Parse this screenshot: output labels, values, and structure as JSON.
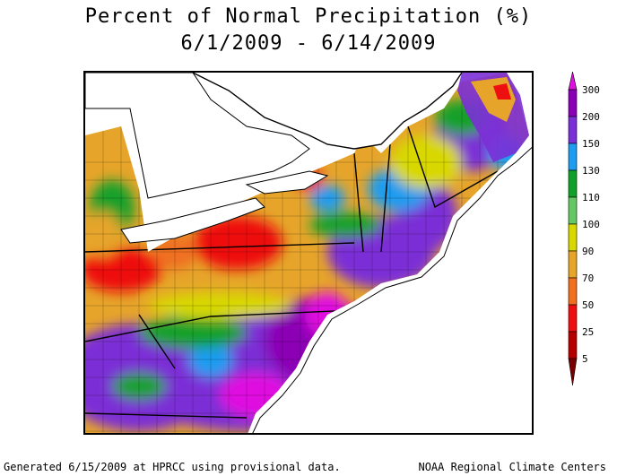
{
  "title": "Percent of Normal Precipitation (%)",
  "subtitle": "6/1/2009 - 6/14/2009",
  "footer": {
    "left": "Generated 6/15/2009 at HPRCC using provisional data.",
    "right": "NOAA Regional Climate Centers"
  },
  "legend": {
    "levels": [
      {
        "label": "300",
        "color": "#8b00b5"
      },
      {
        "label": "200",
        "color": "#7b2fd6"
      },
      {
        "label": "150",
        "color": "#1e9cf0"
      },
      {
        "label": "130",
        "color": "#12a02a"
      },
      {
        "label": "110",
        "color": "#66c766"
      },
      {
        "label": "100",
        "color": "#d8d800"
      },
      {
        "label": "90",
        "color": "#e6a52a"
      },
      {
        "label": "70",
        "color": "#f07020"
      },
      {
        "label": "50",
        "color": "#ee1010"
      },
      {
        "label": "25",
        "color": "#b40000"
      },
      {
        "label": "5",
        "color": "#7a0000"
      }
    ],
    "top_color": "#e010e0"
  },
  "map_colors": {
    "lake": "#ffffff",
    "ocean": "#ffffff",
    "border": "#000000"
  }
}
